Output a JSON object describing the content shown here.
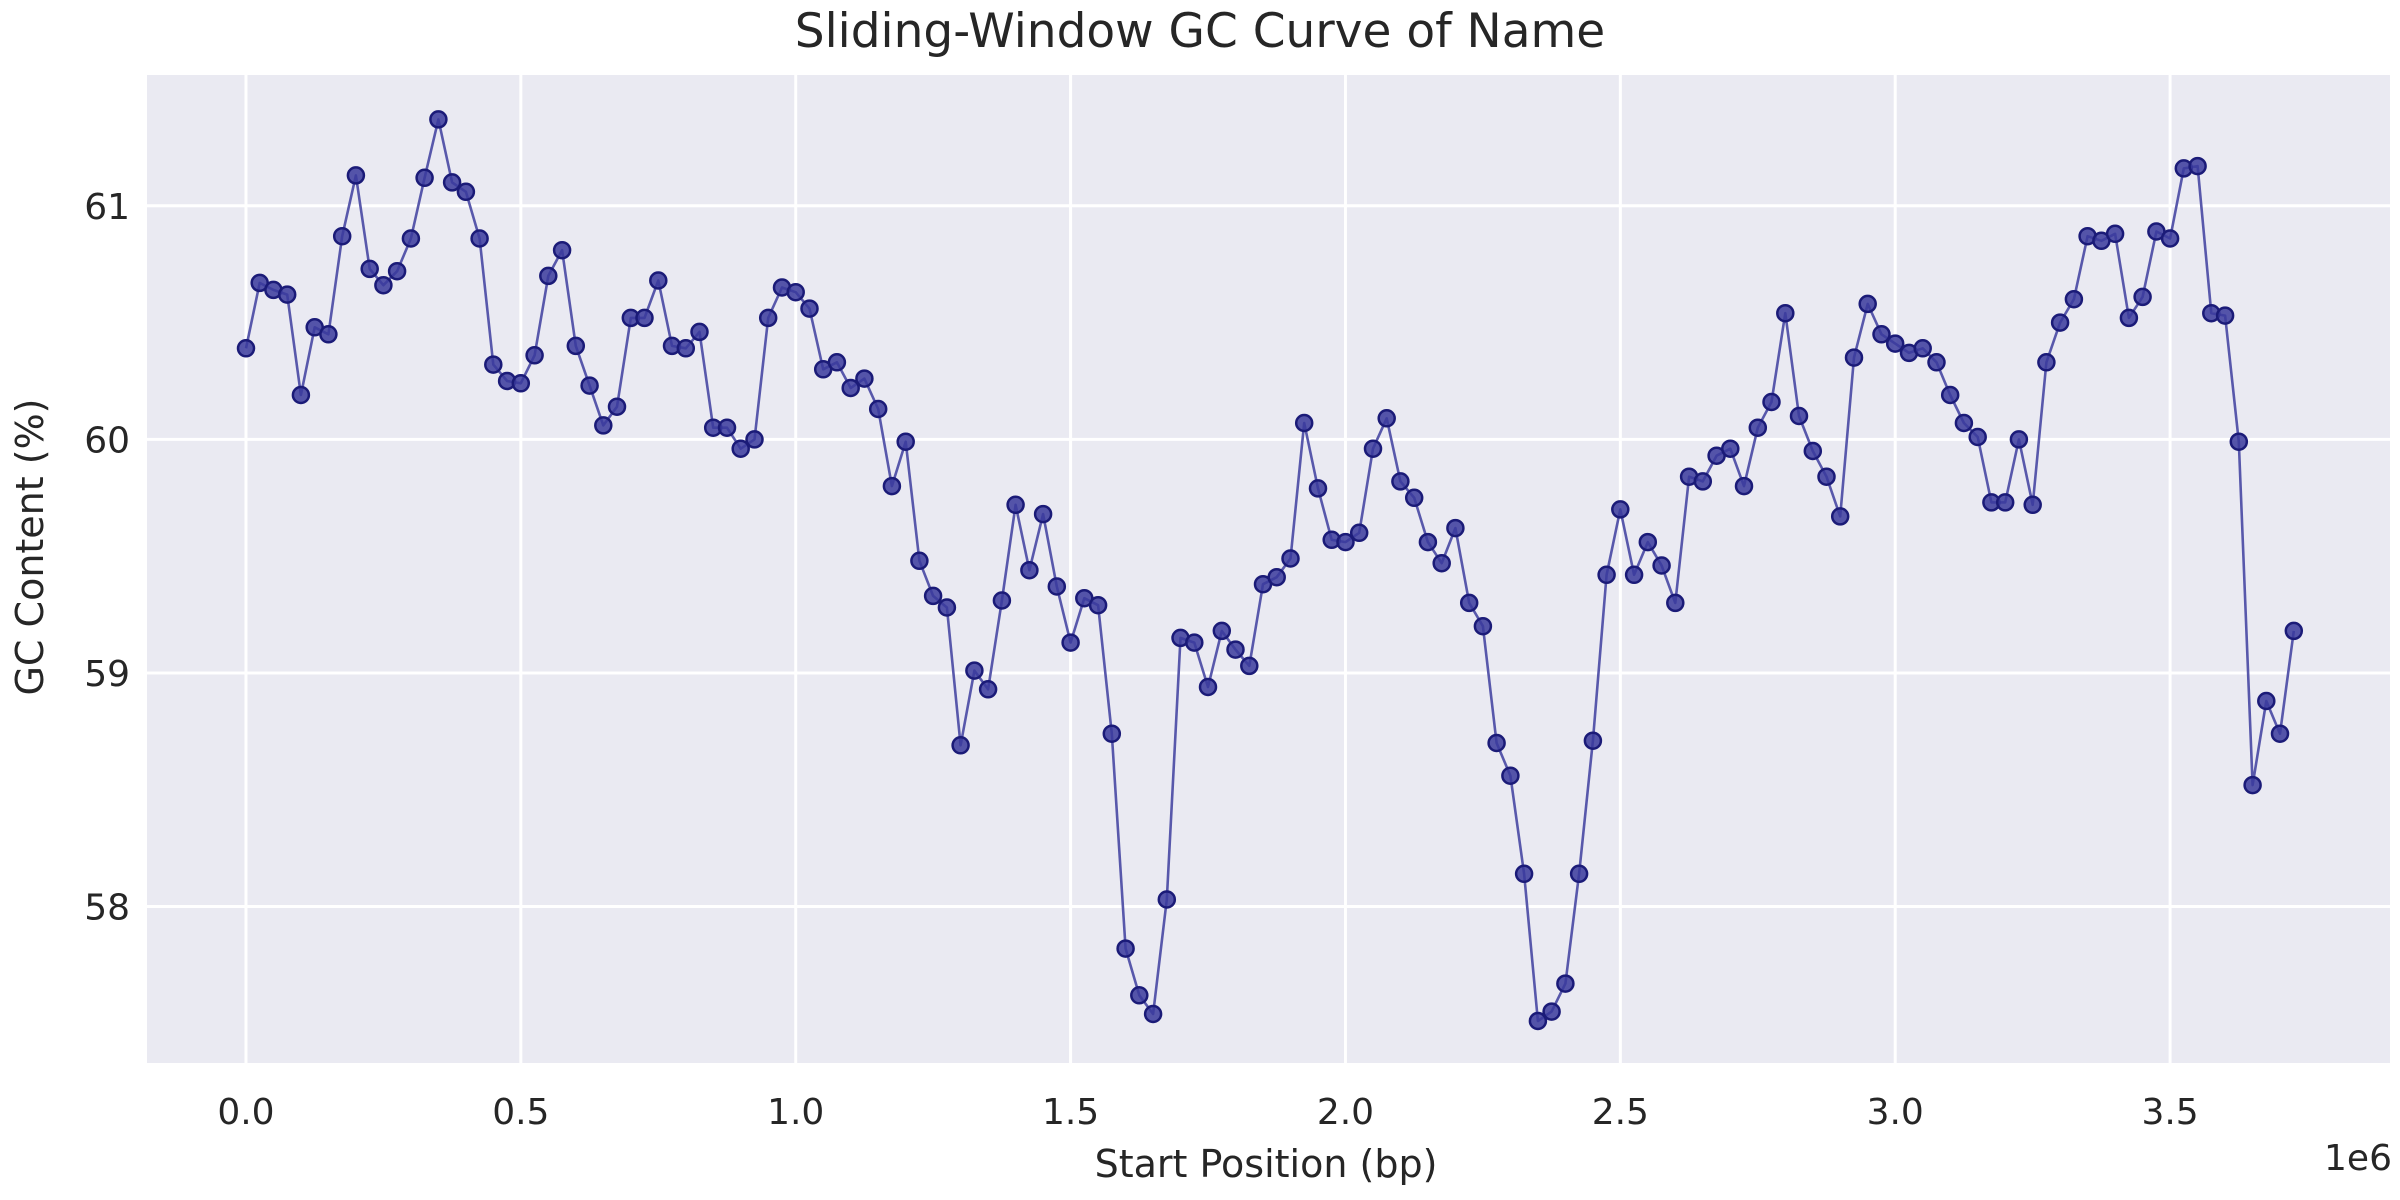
{
  "chart_data": {
    "type": "line",
    "title": "Sliding-Window GC Curve of Name",
    "xlabel": "Start Position (bp)",
    "ylabel": "GC Content (%)",
    "x_offset_label": "1e6",
    "xlim": [
      -0.18,
      3.9
    ],
    "ylim": [
      57.33,
      61.56
    ],
    "x_ticks": [
      0.0,
      0.5,
      1.0,
      1.5,
      2.0,
      2.5,
      3.0,
      3.5
    ],
    "x_tick_labels": [
      "0.0",
      "0.5",
      "1.0",
      "1.5",
      "2.0",
      "2.5",
      "3.0",
      "3.5"
    ],
    "y_ticks": [
      58,
      59,
      60,
      61
    ],
    "y_tick_labels": [
      "58",
      "59",
      "60",
      "61"
    ],
    "grid": true,
    "x_step": 0.025,
    "colors": {
      "background": "#EAEAF2",
      "grid": "#FFFFFF",
      "line": "#5050A6",
      "marker_fill": "#3A3A9C",
      "marker_edge": "#1B1B78"
    },
    "series": [
      {
        "marker": "circle",
        "values": [
          60.39,
          60.67,
          60.64,
          60.62,
          60.19,
          60.48,
          60.45,
          60.87,
          61.13,
          60.73,
          60.66,
          60.72,
          60.86,
          61.12,
          61.37,
          61.1,
          61.06,
          60.86,
          60.32,
          60.25,
          60.24,
          60.36,
          60.7,
          60.81,
          60.4,
          60.23,
          60.06,
          60.14,
          60.52,
          60.52,
          60.68,
          60.4,
          60.39,
          60.46,
          60.05,
          60.05,
          59.96,
          60.0,
          60.52,
          60.65,
          60.63,
          60.56,
          60.3,
          60.33,
          60.22,
          60.26,
          60.13,
          59.8,
          59.99,
          59.48,
          59.33,
          59.28,
          58.69,
          59.01,
          58.93,
          59.31,
          59.72,
          59.44,
          59.68,
          59.37,
          59.13,
          59.32,
          59.29,
          58.74,
          57.82,
          57.62,
          57.54,
          58.03,
          59.15,
          59.13,
          58.94,
          59.18,
          59.1,
          59.03,
          59.38,
          59.41,
          59.49,
          60.07,
          59.79,
          59.57,
          59.56,
          59.6,
          59.96,
          60.09,
          59.82,
          59.75,
          59.56,
          59.47,
          59.62,
          59.3,
          59.2,
          58.7,
          58.56,
          58.14,
          57.51,
          57.55,
          57.67,
          58.14,
          58.71,
          59.42,
          59.7,
          59.42,
          59.56,
          59.46,
          59.3,
          59.84,
          59.82,
          59.93,
          59.96,
          59.8,
          60.05,
          60.16,
          60.54,
          60.1,
          59.95,
          59.84,
          59.67,
          60.35,
          60.58,
          60.45,
          60.41,
          60.37,
          60.39,
          60.33,
          60.19,
          60.07,
          60.01,
          59.73,
          59.73,
          60.0,
          59.72,
          60.33,
          60.5,
          60.6,
          60.87,
          60.85,
          60.88,
          60.52,
          60.61,
          60.89,
          60.86,
          61.16,
          61.17,
          60.54,
          60.53,
          59.99,
          58.52,
          58.88,
          58.74,
          59.18
        ]
      }
    ]
  }
}
